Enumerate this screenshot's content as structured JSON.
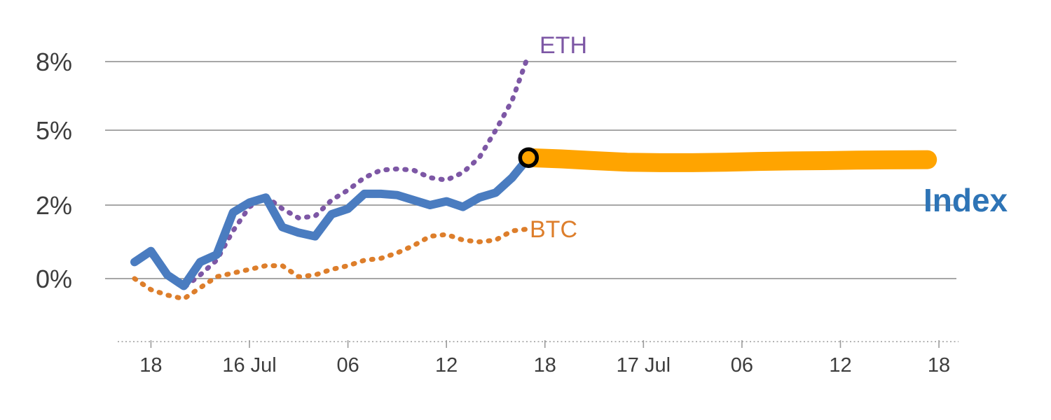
{
  "chart_data": {
    "type": "line",
    "title": "",
    "grid": "horizontal gridlines on",
    "legend_position": "inline labels next to line ends",
    "x_axis_unit": "time, ticks every 6 hours",
    "xlim_hours": [
      0,
      49
    ],
    "ylim_percent": [
      -1.5,
      9
    ],
    "y_ticks": [
      {
        "value": 8,
        "label": "8%"
      },
      {
        "value": 5,
        "label": "5%"
      },
      {
        "value": 2,
        "label": "2%"
      },
      {
        "value": 0,
        "label": "0%"
      }
    ],
    "x_ticks": [
      {
        "t": 1,
        "label": "18"
      },
      {
        "t": 7,
        "label": "16 Jul"
      },
      {
        "t": 13,
        "label": "06"
      },
      {
        "t": 19,
        "label": "12"
      },
      {
        "t": 25,
        "label": "18"
      },
      {
        "t": 31,
        "label": "17 Jul"
      },
      {
        "t": 37,
        "label": "06"
      },
      {
        "t": 43,
        "label": "12"
      },
      {
        "t": 49,
        "label": "18"
      }
    ],
    "series_labels": {
      "eth": "ETH",
      "btc": "BTC",
      "index": "Index"
    },
    "label_colors": {
      "eth": "#7d57a5",
      "btc": "#dd7e2b",
      "index": "#2e74b6"
    },
    "series": [
      {
        "name": "BTC",
        "color": "#dd7e2b",
        "line_style": "dotted",
        "points": [
          [
            0,
            0.0
          ],
          [
            1,
            -0.3
          ],
          [
            2,
            -0.45
          ],
          [
            3,
            -0.55
          ],
          [
            4,
            -0.25
          ],
          [
            5,
            0.05
          ],
          [
            6,
            0.15
          ],
          [
            7,
            0.25
          ],
          [
            8,
            0.35
          ],
          [
            9,
            0.35
          ],
          [
            10,
            0.05
          ],
          [
            11,
            0.1
          ],
          [
            12,
            0.25
          ],
          [
            13,
            0.35
          ],
          [
            14,
            0.5
          ],
          [
            15,
            0.55
          ],
          [
            16,
            0.7
          ],
          [
            17,
            0.9
          ],
          [
            18,
            1.15
          ],
          [
            19,
            1.2
          ],
          [
            20,
            1.05
          ],
          [
            21,
            1.0
          ],
          [
            22,
            1.05
          ],
          [
            23,
            1.3
          ],
          [
            24,
            1.35
          ]
        ]
      },
      {
        "name": "ETH",
        "color": "#7d57a5",
        "line_style": "dotted",
        "points": [
          [
            0,
            0.5
          ],
          [
            1,
            0.65
          ],
          [
            2,
            0.15
          ],
          [
            3,
            -0.25
          ],
          [
            4,
            0.1
          ],
          [
            5,
            0.5
          ],
          [
            6,
            1.3
          ],
          [
            7,
            1.95
          ],
          [
            8,
            2.35
          ],
          [
            9,
            1.9
          ],
          [
            10,
            1.65
          ],
          [
            11,
            1.7
          ],
          [
            12,
            2.2
          ],
          [
            13,
            2.6
          ],
          [
            14,
            3.1
          ],
          [
            15,
            3.4
          ],
          [
            16,
            3.45
          ],
          [
            17,
            3.4
          ],
          [
            18,
            3.1
          ],
          [
            19,
            3.0
          ],
          [
            20,
            3.3
          ],
          [
            21,
            3.9
          ],
          [
            22,
            5.0
          ],
          [
            23,
            6.3
          ],
          [
            24,
            8.3
          ]
        ]
      },
      {
        "name": "Index",
        "color": "#4a7cc0",
        "line_style": "solid",
        "points": [
          [
            0,
            0.45
          ],
          [
            1,
            0.75
          ],
          [
            2,
            0.1
          ],
          [
            3,
            -0.2
          ],
          [
            4,
            0.45
          ],
          [
            5,
            0.65
          ],
          [
            6,
            1.8
          ],
          [
            7,
            2.1
          ],
          [
            8,
            2.3
          ],
          [
            9,
            1.4
          ],
          [
            10,
            1.25
          ],
          [
            11,
            1.15
          ],
          [
            12,
            1.75
          ],
          [
            13,
            1.9
          ],
          [
            14,
            2.45
          ],
          [
            15,
            2.45
          ],
          [
            16,
            2.4
          ],
          [
            17,
            2.2
          ],
          [
            18,
            2.0
          ],
          [
            19,
            2.15
          ],
          [
            20,
            1.95
          ],
          [
            21,
            2.3
          ],
          [
            22,
            2.5
          ],
          [
            23,
            3.1
          ],
          [
            24,
            3.9
          ]
        ]
      },
      {
        "name": "Index-band",
        "color": "#ffa400",
        "line_style": "band",
        "points": [
          [
            24,
            3.9
          ],
          [
            26,
            3.85
          ],
          [
            28,
            3.78
          ],
          [
            30,
            3.72
          ],
          [
            32,
            3.7
          ],
          [
            34,
            3.7
          ],
          [
            36,
            3.72
          ],
          [
            38,
            3.75
          ],
          [
            40,
            3.77
          ],
          [
            42,
            3.78
          ],
          [
            44,
            3.8
          ],
          [
            46,
            3.81
          ],
          [
            48.3,
            3.82
          ]
        ]
      }
    ],
    "marker": {
      "x_hours": 24,
      "value_percent": 3.9,
      "fill": "#ffa400",
      "ring": "#000000"
    },
    "axis_colors": {
      "grid": "#8a8a8a",
      "axis_line": "#9b9b9b",
      "tick_text": "#3d3d3d"
    }
  }
}
